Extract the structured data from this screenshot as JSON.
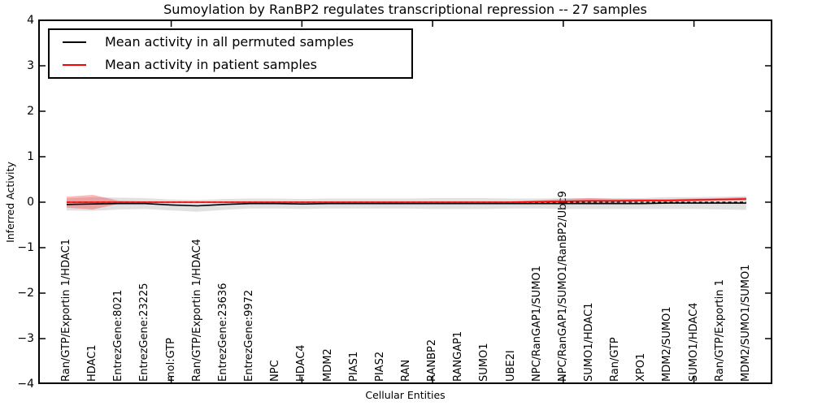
{
  "title": "Sumoylation by RanBP2 regulates transcriptional repression -- 27 samples",
  "chart_data": {
    "type": "line",
    "title": "Sumoylation by RanBP2 regulates transcriptional repression -- 27 samples",
    "xlabel": "Cellular Entities",
    "ylabel": "Inferred Activity",
    "ylim": [
      -4,
      4
    ],
    "yticks": [
      4,
      3,
      2,
      1,
      0,
      -1,
      -2,
      -3,
      -4
    ],
    "xtick_marks_at_category_indices": [
      4,
      9,
      14,
      19,
      24
    ],
    "grid": false,
    "legend_position": "upper left",
    "legend": [
      {
        "label": "Mean activity in all permuted samples",
        "color": "#000000"
      },
      {
        "label": "Mean activity in patient samples",
        "color": "#ff0000"
      }
    ],
    "zero_reference_line": {
      "y": 0,
      "style": "dashed",
      "color": "#000000"
    },
    "categories": [
      "Ran/GTP/Exportin 1/HDAC1",
      "HDAC1",
      "EntrezGene:8021",
      "EntrezGene:23225",
      "mol:GTP",
      "Ran/GTP/Exportin 1/HDAC4",
      "EntrezGene:23636",
      "EntrezGene:9972",
      "NPC",
      "HDAC4",
      "MDM2",
      "PIAS1",
      "PIAS2",
      "RAN",
      "RANBP2",
      "RANGAP1",
      "SUMO1",
      "UBE2I",
      "NPC/RanGAP1/SUMO1",
      "NPC/RanGAP1/SUMO1/RanBP2/Ubc9",
      "SUMO1/HDAC1",
      "Ran/GTP",
      "XPO1",
      "MDM2/SUMO1",
      "SUMO1/HDAC4",
      "Ran/GTP/Exportin 1",
      "MDM2/SUMO1/SUMO1"
    ],
    "series": [
      {
        "name": "Mean activity in all permuted samples",
        "color": "#000000",
        "band_color": "rgba(120,120,120,0.22)",
        "values": [
          -0.05,
          -0.04,
          -0.03,
          -0.03,
          -0.06,
          -0.08,
          -0.05,
          -0.03,
          -0.03,
          -0.04,
          -0.03,
          -0.03,
          -0.03,
          -0.03,
          -0.03,
          -0.03,
          -0.03,
          -0.03,
          -0.03,
          -0.03,
          -0.03,
          -0.03,
          -0.03,
          -0.02,
          -0.02,
          -0.02,
          -0.02
        ],
        "std": [
          0.13,
          0.15,
          0.13,
          0.12,
          0.12,
          0.13,
          0.12,
          0.11,
          0.11,
          0.11,
          0.11,
          0.11,
          0.11,
          0.11,
          0.12,
          0.12,
          0.12,
          0.11,
          0.11,
          0.12,
          0.12,
          0.12,
          0.12,
          0.13,
          0.13,
          0.14,
          0.15
        ]
      },
      {
        "name": "Mean activity in patient samples",
        "color": "#ff0000",
        "band_color": "rgba(255,0,0,0.28)",
        "values": [
          0,
          0,
          0,
          0,
          0,
          0,
          0,
          0,
          0,
          0,
          0,
          0,
          0,
          0,
          0,
          0,
          0,
          0,
          0.01,
          0.02,
          0.03,
          0.03,
          0.04,
          0.04,
          0.05,
          0.06,
          0.07
        ],
        "std": [
          0.12,
          0.16,
          0.03,
          0.02,
          0.02,
          0.02,
          0.02,
          0.02,
          0.02,
          0.02,
          0.02,
          0.02,
          0.02,
          0.02,
          0.02,
          0.02,
          0.02,
          0.02,
          0.03,
          0.05,
          0.06,
          0.04,
          0.03,
          0.03,
          0.03,
          0.03,
          0.04
        ]
      }
    ]
  }
}
